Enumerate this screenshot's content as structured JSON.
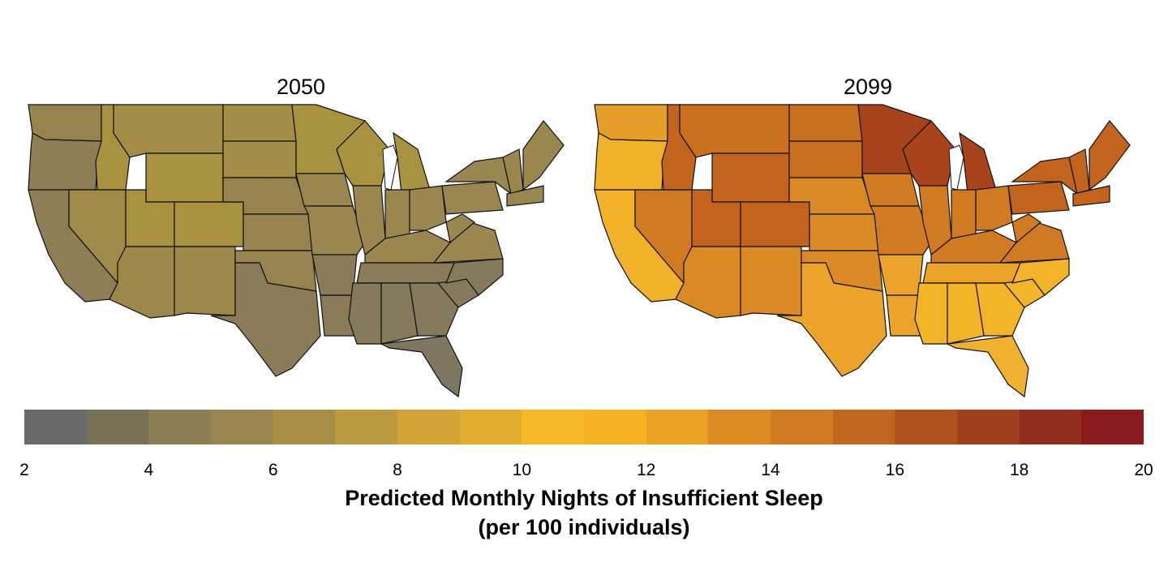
{
  "panels": [
    {
      "title": "2050",
      "colors": {
        "west_coast": "#8e7e55",
        "pnw": "#96834f",
        "mountain": "#a8913f",
        "great_basin": "#a08a4a",
        "southwest": "#9c884b",
        "plains_north": "#a38d47",
        "plains": "#96834f",
        "upper_midwest": "#a8913f",
        "midwest": "#9a8750",
        "south": "#8a7c58",
        "southeast": "#857a5c",
        "northeast": "#9a8750",
        "florida": "#7e7660"
      }
    },
    {
      "title": "2099",
      "colors": {
        "west_coast": "#f2b12a",
        "pnw": "#e69e2a",
        "mountain": "#c2631e",
        "great_basin": "#d07a22",
        "southwest": "#d98a24",
        "plains_north": "#c9701f",
        "plains": "#d98a24",
        "upper_midwest": "#a8441c",
        "midwest": "#d07a22",
        "south": "#eba32a",
        "southeast": "#f4b42a",
        "northeast": "#c2631e",
        "florida": "#f0b030"
      }
    }
  ],
  "colorbar": {
    "min": 2,
    "max": 20,
    "bins": [
      "#6a6a6a",
      "#7a7058",
      "#8b7d54",
      "#9a8650",
      "#a98e48",
      "#bc9a3f",
      "#d2a336",
      "#e2ad2c",
      "#f6b826",
      "#f4b225",
      "#e9a126",
      "#dc8b24",
      "#d07a22",
      "#c1651f",
      "#b0521d",
      "#a0401c",
      "#922c1c",
      "#8a1a1c"
    ],
    "ticks": [
      "2",
      "4",
      "6",
      "8",
      "10",
      "12",
      "14",
      "16",
      "18",
      "20"
    ]
  },
  "legend": {
    "title_line1": "Predicted Monthly Nights of Insufficient Sleep",
    "title_line2": "(per 100 individuals)"
  },
  "chart_data": {
    "type": "heatmap",
    "title": "Predicted Monthly Nights of Insufficient Sleep (per 100 individuals)",
    "panels": [
      "2050",
      "2099"
    ],
    "colorbar_range": [
      2,
      20
    ],
    "colorbar_ticks": [
      2,
      4,
      6,
      8,
      10,
      12,
      14,
      16,
      18,
      20
    ],
    "regions_estimated": {
      "2050": {
        "west_coast": 5,
        "mountain_west": 7,
        "northern_plains": 6.5,
        "upper_midwest": 7,
        "midwest": 6,
        "south": 4.5,
        "southeast": 4,
        "florida": 3.5,
        "northeast": 6
      },
      "2099": {
        "west_coast": 11,
        "mountain_west": 16,
        "northern_plains": 15,
        "upper_midwest": 17.5,
        "midwest": 14,
        "south": 12,
        "southeast": 11,
        "florida": 11,
        "northeast": 15.5
      }
    }
  }
}
